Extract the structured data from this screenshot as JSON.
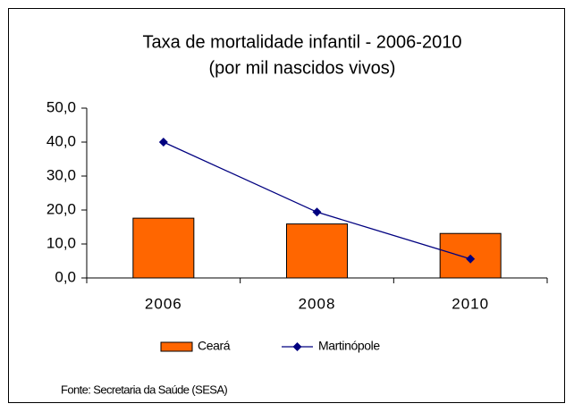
{
  "chart_data": {
    "type": "bar",
    "title": "Taxa de mortalidade infantil - 2006-2010",
    "subtitle": "(por mil nascidos vivos)",
    "categories": [
      "2006",
      "2008",
      "2010"
    ],
    "series": [
      {
        "name": "Ceará",
        "type": "bar",
        "color": "#ff6600",
        "values": [
          17.6,
          15.9,
          13.1
        ]
      },
      {
        "name": "Martinópole",
        "type": "line",
        "color": "#000080",
        "values": [
          40.0,
          19.4,
          5.6
        ]
      }
    ],
    "ylim": [
      0,
      50
    ],
    "yticks": [
      {
        "value": 0,
        "label": "0,0"
      },
      {
        "value": 10,
        "label": "10,0"
      },
      {
        "value": 20,
        "label": "20,0"
      },
      {
        "value": 30,
        "label": "30,0"
      },
      {
        "value": 40,
        "label": "40,0"
      },
      {
        "value": 50,
        "label": "50,0"
      }
    ],
    "legend": "bottom",
    "source": "Fonte: Secretaria da Saúde (SESA)"
  }
}
